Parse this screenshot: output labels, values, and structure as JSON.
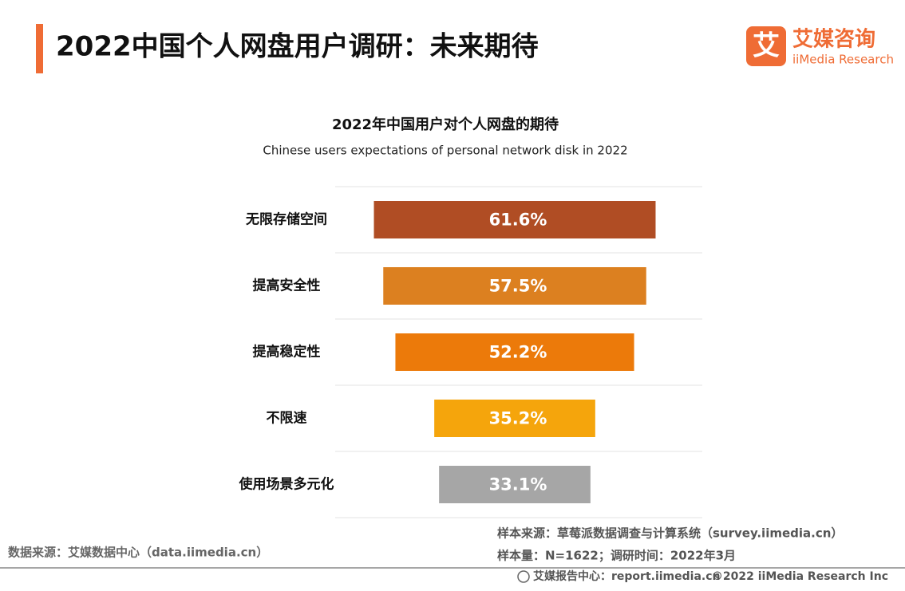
{
  "header": {
    "title": "2022中国个人网盘用户调研：未来期待",
    "logo_cn": "艾媒咨询",
    "logo_en": "iiMedia Research",
    "logo_mark": "艾"
  },
  "chart_data": {
    "type": "bar",
    "title": "2022年中国用户对个人网盘的期待",
    "subtitle": "Chinese users expectations of personal network disk in 2022",
    "categories": [
      "无限存储空间",
      "提高安全性",
      "提高稳定性",
      "不限速",
      "使用场景多元化"
    ],
    "values": [
      61.6,
      57.5,
      52.2,
      35.2,
      33.1
    ],
    "value_labels": [
      "61.6%",
      "57.5%",
      "52.2%",
      "35.2%",
      "33.1%"
    ],
    "colors": [
      "#b04d24",
      "#dc8020",
      "#ec7a0a",
      "#f5a50c",
      "#a6a6a6"
    ]
  },
  "footer": {
    "sample_source": "样本来源：草莓派数据调查与计算系统（survey.iimedia.cn）",
    "sample_size": "样本量：N=1622；调研时间：2022年3月",
    "data_source": "数据来源：艾媒数据中心（data.iimedia.cn）",
    "report_center": "艾媒报告中心：report.iimedia.cn",
    "copyright": "©2022 iiMedia Research Inc"
  }
}
